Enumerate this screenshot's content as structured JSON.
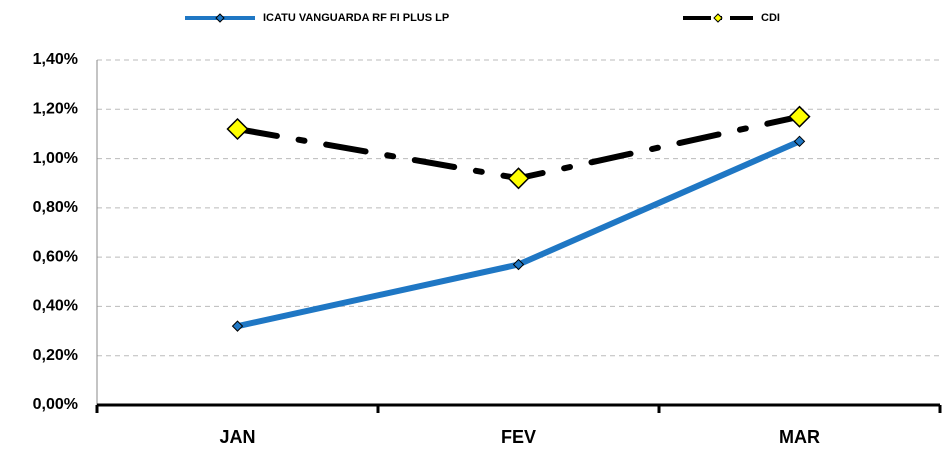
{
  "chart_data": {
    "type": "line",
    "categories": [
      "JAN",
      "FEV",
      "MAR"
    ],
    "series": [
      {
        "name": "ICATU VANGUARDA RF FI PLUS LP",
        "color": "#1f77c4",
        "values": [
          0.32,
          0.57,
          1.07
        ]
      },
      {
        "name": "CDI",
        "color": "#000000",
        "values": [
          1.12,
          0.92,
          1.17
        ]
      }
    ],
    "ylim": [
      0,
      1.4
    ],
    "yticks": [
      {
        "value": 0,
        "label": "0,00%"
      },
      {
        "value": 0.2,
        "label": "0,20%"
      },
      {
        "value": 0.4,
        "label": "0,40%"
      },
      {
        "value": 0.6,
        "label": "0,60%"
      },
      {
        "value": 0.8,
        "label": "0,80%"
      },
      {
        "value": 1.0,
        "label": "1,00%"
      },
      {
        "value": 1.2,
        "label": "1,20%"
      },
      {
        "value": 1.4,
        "label": "1,40%"
      }
    ],
    "grid": true,
    "legend": "top"
  }
}
